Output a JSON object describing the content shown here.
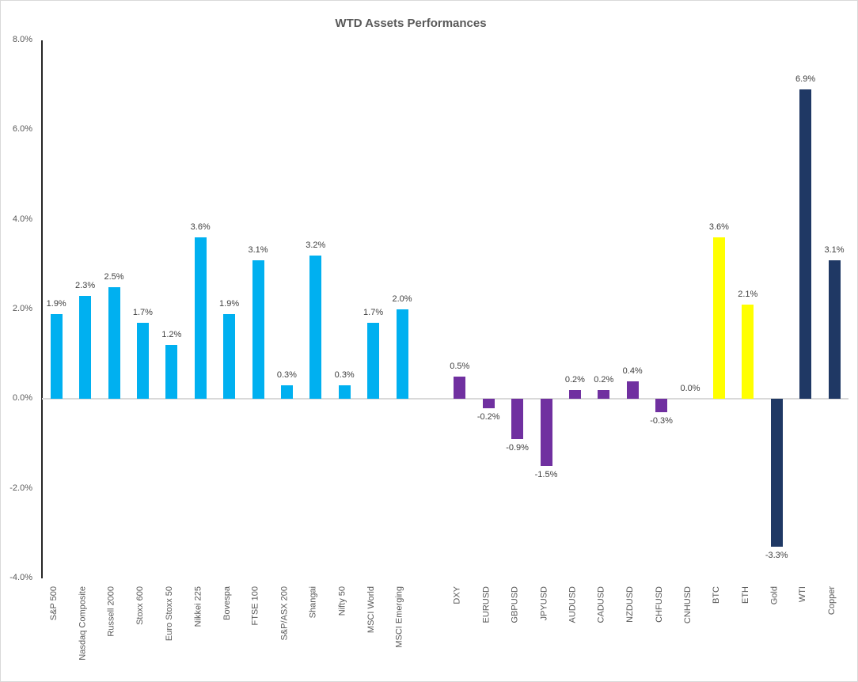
{
  "chart_title": "WTD Assets Performances",
  "chart_data": {
    "type": "bar",
    "title": "WTD Assets Performances",
    "xlabel": "",
    "ylabel": "",
    "ylim": [
      -4.0,
      8.0
    ],
    "ytick_values": [
      8.0,
      6.0,
      4.0,
      2.0,
      0.0,
      -2.0,
      -4.0
    ],
    "ytick_labels": [
      "8.0%",
      "6.0%",
      "4.0%",
      "2.0%",
      "0.0%",
      "-2.0%",
      "-4.0%"
    ],
    "grid": "zero-baseline-only",
    "legend_position": "none",
    "value_labels_shown": true,
    "category_label_rotation_degrees": 90,
    "groups": [
      {
        "name": "equity-indices",
        "color": "#00B0F0",
        "categories": [
          "S&P 500",
          "Nasdaq Composite",
          "Russell 2000",
          "Stoxx 600",
          "Euro Stoxx 50",
          "Nikkei 225",
          "Bovespa",
          "FTSE 100",
          "S&P/ASX 200",
          "Shangai",
          "Nifty 50",
          "MSCI World",
          "MSCI Emerging"
        ],
        "values": [
          1.9,
          2.3,
          2.5,
          1.7,
          1.2,
          3.6,
          1.9,
          3.1,
          0.3,
          3.2,
          0.3,
          1.7,
          2.0
        ],
        "value_labels": [
          "1.9%",
          "2.3%",
          "2.5%",
          "1.7%",
          "1.2%",
          "3.6%",
          "1.9%",
          "3.1%",
          "0.3%",
          "3.2%",
          "0.3%",
          "1.7%",
          "2.0%"
        ],
        "gap_after": true
      },
      {
        "name": "currencies",
        "color": "#7030A0",
        "categories": [
          "DXY",
          "EURUSD",
          "GBPUSD",
          "JPYUSD",
          "AUDUSD",
          "CADUSD",
          "NZDUSD",
          "CHFUSD",
          "CNHUSD"
        ],
        "values": [
          0.5,
          -0.2,
          -0.9,
          -1.5,
          0.2,
          0.2,
          0.4,
          -0.3,
          0.0
        ],
        "value_labels": [
          "0.5%",
          "-0.2%",
          "-0.9%",
          "-1.5%",
          "0.2%",
          "0.2%",
          "0.4%",
          "-0.3%",
          "0.0%"
        ],
        "gap_after": false
      },
      {
        "name": "crypto",
        "color": "#FFFF00",
        "categories": [
          "BTC",
          "ETH"
        ],
        "values": [
          3.6,
          2.1
        ],
        "value_labels": [
          "3.6%",
          "2.1%"
        ],
        "gap_after": false
      },
      {
        "name": "commodities",
        "color": "#1F3864",
        "categories": [
          "Gold",
          "WTI",
          "Copper"
        ],
        "values": [
          -3.3,
          6.9,
          3.1
        ],
        "value_labels": [
          "-3.3%",
          "6.9%",
          "3.1%"
        ],
        "gap_after": false
      }
    ]
  },
  "colors": {
    "equity": "#00B0F0",
    "fx": "#7030A0",
    "crypto": "#FFFF00",
    "commodity": "#1F3864",
    "axis_line": "#262626",
    "zero_line": "#D9D9D9",
    "title_text": "#595959",
    "tick_text": "#595959",
    "value_label_text": "#404040"
  }
}
